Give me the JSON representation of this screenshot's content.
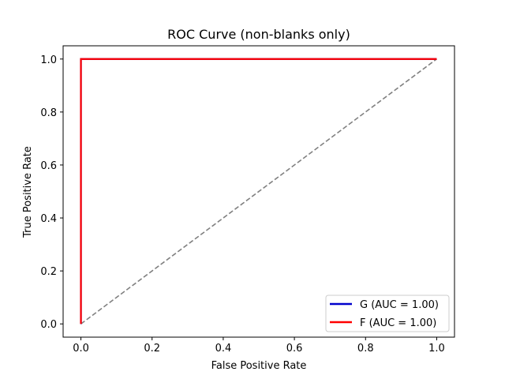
{
  "chart_data": {
    "type": "line",
    "title": "ROC Curve (non-blanks only)",
    "xlabel": "False Positive Rate",
    "ylabel": "True Positive Rate",
    "xlim": [
      -0.05,
      1.05
    ],
    "ylim": [
      -0.05,
      1.05
    ],
    "xticks": [
      "0.0",
      "0.2",
      "0.4",
      "0.6",
      "0.8",
      "1.0"
    ],
    "yticks": [
      "0.0",
      "0.2",
      "0.4",
      "0.6",
      "0.8",
      "1.0"
    ],
    "grid": false,
    "legend_position": "lower-right",
    "series": [
      {
        "name": "G (AUC = 1.00)",
        "color": "#0000cc",
        "x": [
          0,
          0,
          1
        ],
        "y": [
          0,
          1,
          1
        ]
      },
      {
        "name": "F (AUC = 1.00)",
        "color": "#ff0000",
        "x": [
          0,
          0,
          1
        ],
        "y": [
          0,
          1,
          1
        ]
      }
    ],
    "reference_line": {
      "color": "#808080",
      "style": "dashed",
      "x": [
        0,
        1
      ],
      "y": [
        0,
        1
      ]
    }
  }
}
